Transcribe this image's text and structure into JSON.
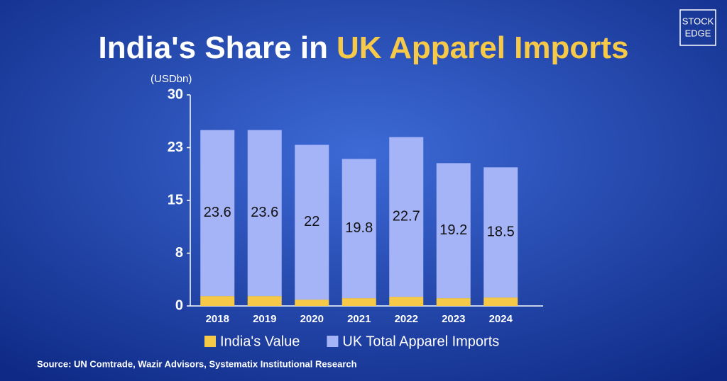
{
  "chart_data": {
    "type": "stacked_bar",
    "title": "India's Share in",
    "title_highlight": "UK Apparel Imports",
    "y_label": "(USDbn)",
    "categories": [
      "2018",
      "2019",
      "2020",
      "2021",
      "2022",
      "2023",
      "2024"
    ],
    "series": [
      {
        "name": "India's Value",
        "color": "#f7c948",
        "values": [
          1.4,
          1.4,
          0.9,
          1.1,
          1.3,
          1.1,
          1.2
        ]
      },
      {
        "name": "UK Total Apparel Imports",
        "color": "#a5b3f7",
        "values": [
          23.6,
          23.6,
          22,
          19.8,
          22.7,
          19.2,
          18.5
        ]
      }
    ],
    "ylim": [
      0,
      30
    ],
    "yticks": [
      0,
      {
        "value": 7.5,
        "label": "8"
      },
      15,
      {
        "value": 22.5,
        "label": "23"
      },
      30
    ],
    "source": "Source: UN Comtrade, Wazir Advisors, Systematix Institutional Research",
    "logo": [
      "STOCK",
      "EDGE"
    ]
  }
}
